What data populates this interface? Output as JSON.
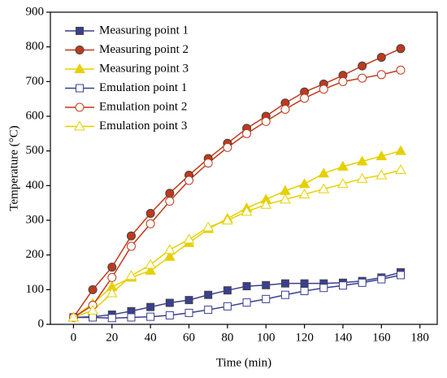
{
  "chart_data": {
    "type": "line",
    "x_label": "Time (min)",
    "y_label": "Temperature (°C)",
    "x": [
      0,
      10,
      20,
      30,
      40,
      50,
      60,
      70,
      80,
      90,
      100,
      110,
      120,
      130,
      140,
      150,
      160,
      170
    ],
    "xlim": [
      -12,
      189
    ],
    "xticks": [
      0,
      20,
      40,
      60,
      80,
      100,
      120,
      140,
      160,
      180
    ],
    "ylim": [
      0,
      900
    ],
    "yticks": [
      0,
      100,
      200,
      300,
      400,
      500,
      600,
      700,
      800,
      900
    ],
    "legend": "upper-left",
    "series": [
      {
        "name": "Measuring point 1",
        "color": "#3a3f8f",
        "marker": "square",
        "filled": true,
        "values": [
          20,
          22,
          28,
          38,
          50,
          62,
          70,
          85,
          98,
          110,
          113,
          118,
          118,
          118,
          120,
          125,
          135,
          150
        ]
      },
      {
        "name": "Measuring point 2",
        "color": "#c0391b",
        "marker": "circle",
        "filled": true,
        "values": [
          20,
          100,
          165,
          255,
          320,
          378,
          430,
          478,
          522,
          565,
          600,
          638,
          670,
          693,
          718,
          745,
          770,
          795
        ]
      },
      {
        "name": "Measuring point 3",
        "color": "#e6d000",
        "marker": "triangle",
        "filled": true,
        "values": [
          20,
          60,
          108,
          135,
          155,
          195,
          235,
          275,
          305,
          335,
          360,
          385,
          405,
          435,
          455,
          470,
          485,
          500
        ]
      },
      {
        "name": "Emulation point 1",
        "color": "#3a3f8f",
        "marker": "square",
        "filled": false,
        "values": [
          20,
          20,
          18,
          20,
          22,
          26,
          33,
          42,
          52,
          63,
          73,
          85,
          96,
          105,
          112,
          120,
          130,
          142
        ]
      },
      {
        "name": "Emulation point 2",
        "color": "#c0391b",
        "marker": "circle",
        "filled": false,
        "values": [
          20,
          55,
          135,
          225,
          290,
          355,
          415,
          465,
          510,
          550,
          585,
          620,
          652,
          678,
          700,
          710,
          720,
          733
        ]
      },
      {
        "name": "Emulation point 3",
        "color": "#e6d000",
        "marker": "triangle",
        "filled": false,
        "values": [
          20,
          40,
          90,
          140,
          172,
          215,
          245,
          280,
          300,
          325,
          345,
          360,
          375,
          390,
          405,
          420,
          430,
          445
        ]
      }
    ]
  }
}
